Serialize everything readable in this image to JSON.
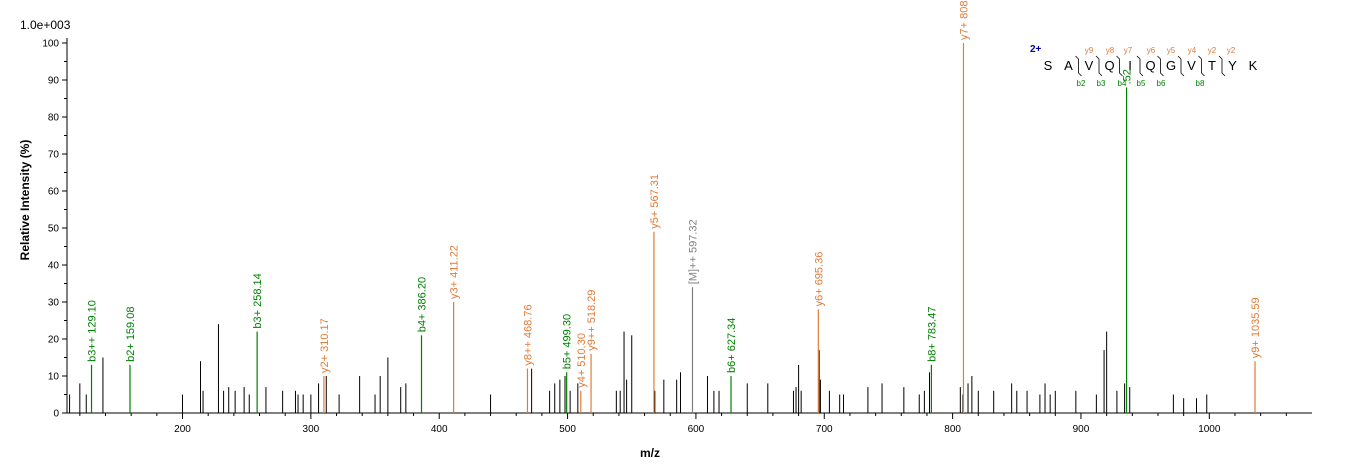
{
  "chart_data": {
    "type": "bar",
    "scale_label": "1.0e+003",
    "xlabel": "m/z",
    "ylabel": "Relative   Intensity (%)",
    "xlim": [
      110,
      1080
    ],
    "ylim": [
      0,
      100
    ],
    "x_ticks": [
      "200",
      "300",
      "400",
      "500",
      "600",
      "700",
      "800",
      "900",
      "1000"
    ],
    "y_ticks": [
      "0",
      "10",
      "20",
      "30",
      "40",
      "50",
      "60",
      "70",
      "80",
      "90",
      "100"
    ],
    "colors": {
      "b_ion": "#008000",
      "y_ion": "#e07b39",
      "precursor": "#808080",
      "unassigned": "#000000",
      "charge": "#0000a0"
    },
    "unassigned_peaks": [
      [
        112,
        5
      ],
      [
        120,
        8
      ],
      [
        125,
        5
      ],
      [
        138,
        15
      ],
      [
        200,
        5
      ],
      [
        214,
        14
      ],
      [
        216,
        6
      ],
      [
        228,
        24
      ],
      [
        232,
        6
      ],
      [
        236,
        7
      ],
      [
        241,
        6
      ],
      [
        248,
        7
      ],
      [
        252,
        5
      ],
      [
        265,
        7
      ],
      [
        278,
        6
      ],
      [
        288,
        6
      ],
      [
        290,
        5
      ],
      [
        294,
        5
      ],
      [
        300,
        5
      ],
      [
        306,
        8
      ],
      [
        312,
        10
      ],
      [
        322,
        5
      ],
      [
        338,
        10
      ],
      [
        350,
        5
      ],
      [
        354,
        10
      ],
      [
        360,
        15
      ],
      [
        370,
        7
      ],
      [
        374,
        8
      ],
      [
        440,
        5
      ],
      [
        472,
        12
      ],
      [
        486,
        6
      ],
      [
        490,
        8
      ],
      [
        494,
        9
      ],
      [
        498,
        10
      ],
      [
        502,
        6
      ],
      [
        508,
        8
      ],
      [
        538,
        6
      ],
      [
        541,
        6
      ],
      [
        544,
        22
      ],
      [
        546,
        9
      ],
      [
        550,
        21
      ],
      [
        568,
        6
      ],
      [
        575,
        9
      ],
      [
        585,
        9
      ],
      [
        588,
        11
      ],
      [
        609,
        10
      ],
      [
        614,
        6
      ],
      [
        618,
        6
      ],
      [
        640,
        8
      ],
      [
        656,
        8
      ],
      [
        676,
        6
      ],
      [
        678,
        7
      ],
      [
        680,
        13
      ],
      [
        682,
        6
      ],
      [
        696,
        17
      ],
      [
        697,
        9
      ],
      [
        704,
        6
      ],
      [
        712,
        5
      ],
      [
        715,
        5
      ],
      [
        734,
        7
      ],
      [
        745,
        8
      ],
      [
        762,
        7
      ],
      [
        774,
        5
      ],
      [
        778,
        6
      ],
      [
        782,
        11
      ],
      [
        806,
        7
      ],
      [
        808,
        5
      ],
      [
        812,
        8
      ],
      [
        815,
        10
      ],
      [
        820,
        6
      ],
      [
        832,
        6
      ],
      [
        846,
        8
      ],
      [
        850,
        6
      ],
      [
        858,
        6
      ],
      [
        868,
        5
      ],
      [
        872,
        8
      ],
      [
        876,
        5
      ],
      [
        880,
        6
      ],
      [
        896,
        6
      ],
      [
        912,
        5
      ],
      [
        918,
        17
      ],
      [
        920,
        22
      ],
      [
        928,
        6
      ],
      [
        934,
        8
      ],
      [
        938,
        7
      ],
      [
        972,
        5
      ],
      [
        980,
        4
      ],
      [
        990,
        4
      ],
      [
        998,
        5
      ]
    ],
    "annotated_peaks": [
      {
        "x": 129.1,
        "y": 13,
        "type": "b",
        "label": "b3++ 129.10"
      },
      {
        "x": 159.08,
        "y": 13,
        "type": "b",
        "label": "b2+ 159.08"
      },
      {
        "x": 258.14,
        "y": 22,
        "type": "b",
        "label": "b3+ 258.14"
      },
      {
        "x": 310.17,
        "y": 10,
        "type": "y",
        "label": "y2+ 310.17"
      },
      {
        "x": 386.2,
        "y": 21,
        "type": "b",
        "label": "b4+ 386.20"
      },
      {
        "x": 411.22,
        "y": 30,
        "type": "y",
        "label": "y3+ 411.22"
      },
      {
        "x": 468.76,
        "y": 12,
        "type": "y",
        "label": "y8++ 468.76"
      },
      {
        "x": 499.3,
        "y": 11,
        "type": "b",
        "label": "b5+ 499.30"
      },
      {
        "x": 510.3,
        "y": 6,
        "type": "y",
        "label": "y4+ 510.30"
      },
      {
        "x": 518.29,
        "y": 16,
        "type": "y",
        "label": "y9++ 518.29"
      },
      {
        "x": 567.31,
        "y": 49,
        "type": "y",
        "label": "y5+ 567.31"
      },
      {
        "x": 597.32,
        "y": 34,
        "type": "precursor",
        "label": "[M]++ 597.32"
      },
      {
        "x": 627.34,
        "y": 10,
        "type": "b",
        "label": "b6+ 627.34"
      },
      {
        "x": 695.36,
        "y": 28,
        "type": "y",
        "label": "y6+ 695.36"
      },
      {
        "x": 783.47,
        "y": 13,
        "type": "b",
        "label": "b8+ 783.47"
      },
      {
        "x": 808.46,
        "y": 100,
        "type": "y",
        "label": "y7+ 808.46"
      },
      {
        "x": 935.52,
        "y": 88,
        "type": "b",
        "label": ".52"
      },
      {
        "x": 1035.59,
        "y": 14,
        "type": "y",
        "label": "y9+ 1035.59"
      }
    ],
    "sequence": {
      "charge": "2+",
      "residues": [
        "S",
        "A",
        "V",
        "Q",
        "I",
        "Q",
        "G",
        "V",
        "T",
        "Y",
        "K"
      ],
      "y_ions": [
        "y9",
        "y8",
        "y7",
        "y6",
        "y5",
        "y4",
        "y2",
        "y2"
      ],
      "b_ions": [
        "b2",
        "b3",
        "b4",
        "b5",
        "b6",
        "b8"
      ]
    }
  }
}
